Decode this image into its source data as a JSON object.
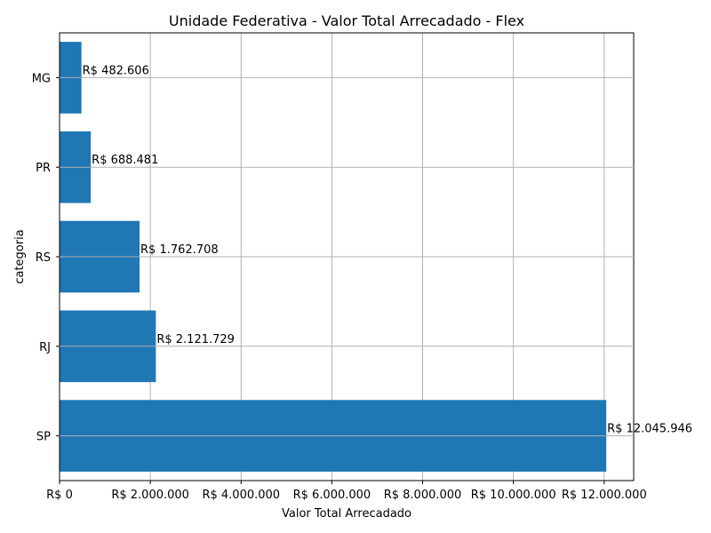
{
  "chart_data": {
    "type": "bar",
    "orientation": "horizontal",
    "title": "Unidade Federativa - Valor Total Arrecadado - Flex",
    "xlabel": "Valor Total Arrecadado",
    "ylabel": "categoria",
    "categories": [
      "SP",
      "RJ",
      "RS",
      "PR",
      "MG"
    ],
    "values": [
      12045946,
      2121729,
      1762708,
      688481,
      482606
    ],
    "value_labels": [
      "R$ 12.045.946",
      "R$ 2.121.729",
      "R$ 1.762.708",
      "R$ 688.481",
      "R$ 482.606"
    ],
    "xlim": [
      0,
      12650000
    ],
    "xticks": [
      0,
      2000000,
      4000000,
      6000000,
      8000000,
      10000000,
      12000000
    ],
    "xtick_labels": [
      "R$ 0",
      "R$ 2.000.000",
      "R$ 4.000.000",
      "R$ 6.000.000",
      "R$ 8.000.000",
      "R$ 10.000.000",
      "R$ 12.000.000"
    ],
    "grid": true,
    "bar_color": "#1f77b4",
    "grid_color": "#b0b0b0"
  }
}
